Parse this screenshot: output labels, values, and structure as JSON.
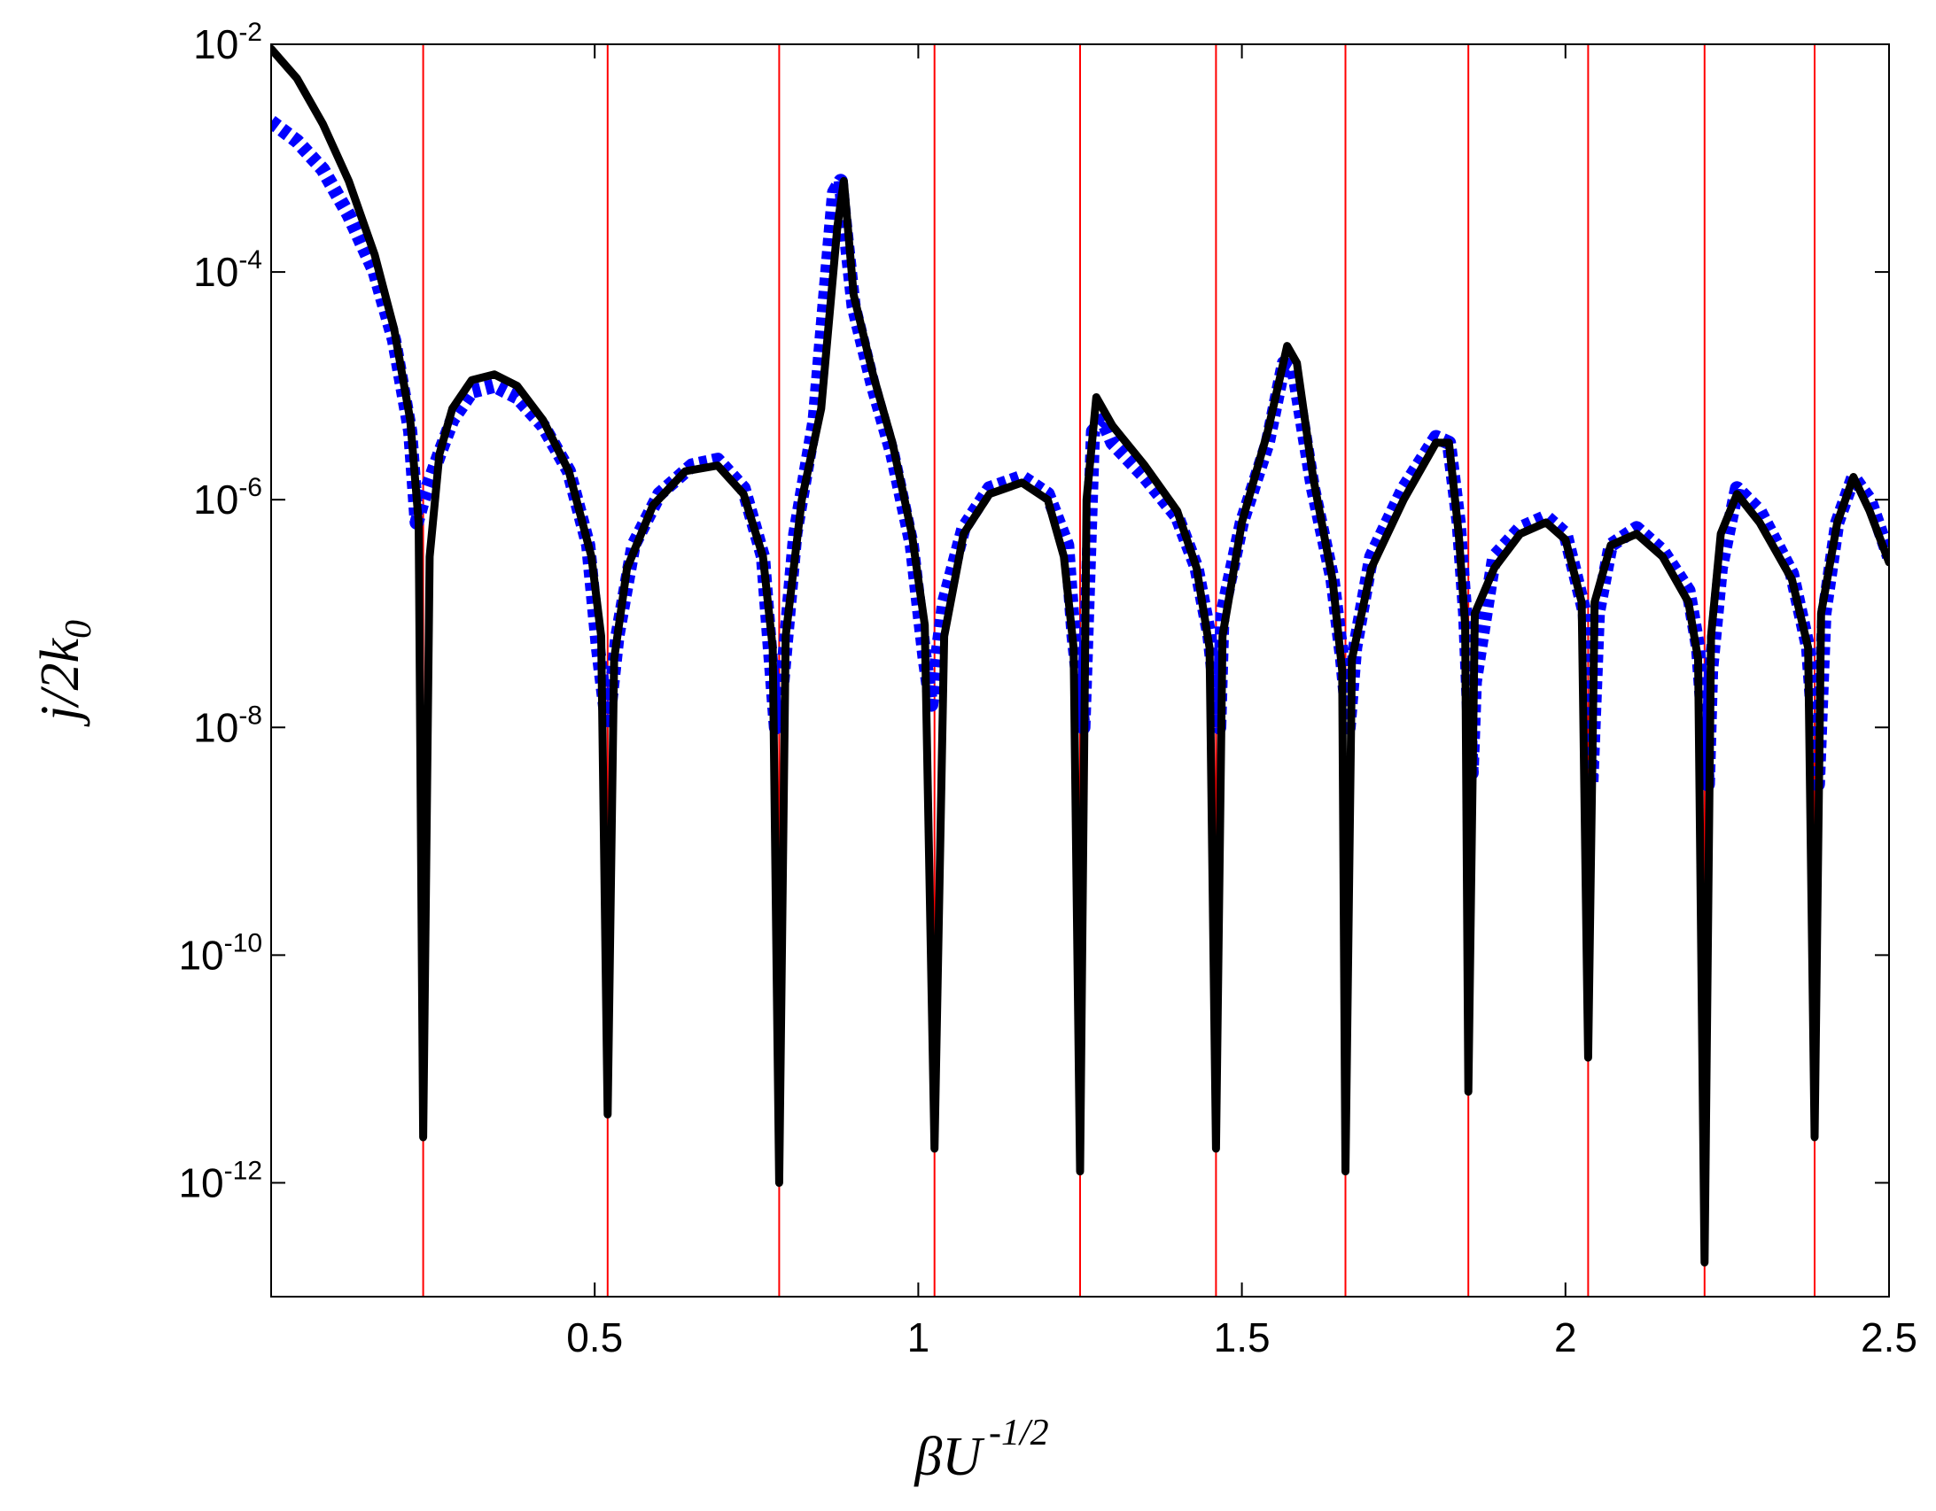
{
  "chart_data": {
    "type": "line",
    "title": "",
    "xlabel": {
      "base": "βU",
      "sup": "-1/2"
    },
    "ylabel": {
      "base": "j/2k",
      "sub": "0"
    },
    "xlim": [
      0,
      2.5
    ],
    "ylim_log10": [
      -13,
      -2
    ],
    "yscale": "log",
    "grid": false,
    "x_ticks": [
      {
        "value": 0.5,
        "label": "0.5"
      },
      {
        "value": 1,
        "label": "1"
      },
      {
        "value": 1.5,
        "label": "1.5"
      },
      {
        "value": 2,
        "label": "2"
      },
      {
        "value": 2.5,
        "label": "2.5"
      }
    ],
    "y_ticks": [
      {
        "exp": -2,
        "base": "10",
        "sup": "-2"
      },
      {
        "exp": -4,
        "base": "10",
        "sup": "-4"
      },
      {
        "exp": -6,
        "base": "10",
        "sup": "-6"
      },
      {
        "exp": -8,
        "base": "10",
        "sup": "-8"
      },
      {
        "exp": -10,
        "base": "10",
        "sup": "-10"
      },
      {
        "exp": -12,
        "base": "10",
        "sup": "-12"
      }
    ],
    "vertical_lines": {
      "color": "#ff0000",
      "x": [
        0.235,
        0.52,
        0.785,
        1.025,
        1.25,
        1.46,
        1.66,
        1.85,
        2.035,
        2.215,
        2.385
      ]
    },
    "series": [
      {
        "style": "solid",
        "color": "#000000",
        "points": [
          [
            0.0,
            -2.04
          ],
          [
            0.04,
            -2.3
          ],
          [
            0.08,
            -2.7
          ],
          [
            0.12,
            -3.2
          ],
          [
            0.16,
            -3.85
          ],
          [
            0.19,
            -4.5
          ],
          [
            0.215,
            -5.3
          ],
          [
            0.228,
            -6.2
          ],
          [
            0.235,
            -11.6
          ],
          [
            0.245,
            -6.5
          ],
          [
            0.26,
            -5.6
          ],
          [
            0.28,
            -5.2
          ],
          [
            0.31,
            -4.95
          ],
          [
            0.345,
            -4.9
          ],
          [
            0.38,
            -5.0
          ],
          [
            0.42,
            -5.3
          ],
          [
            0.46,
            -5.75
          ],
          [
            0.495,
            -6.5
          ],
          [
            0.51,
            -7.2
          ],
          [
            0.52,
            -11.4
          ],
          [
            0.53,
            -7.4
          ],
          [
            0.55,
            -6.6
          ],
          [
            0.59,
            -6.05
          ],
          [
            0.64,
            -5.75
          ],
          [
            0.69,
            -5.7
          ],
          [
            0.73,
            -5.95
          ],
          [
            0.76,
            -6.5
          ],
          [
            0.775,
            -7.3
          ],
          [
            0.785,
            -12.0
          ],
          [
            0.795,
            -7.2
          ],
          [
            0.82,
            -6.0
          ],
          [
            0.85,
            -5.2
          ],
          [
            0.875,
            -3.6
          ],
          [
            0.885,
            -3.2
          ],
          [
            0.9,
            -4.2
          ],
          [
            0.93,
            -4.9
          ],
          [
            0.96,
            -5.5
          ],
          [
            0.99,
            -6.3
          ],
          [
            1.01,
            -7.1
          ],
          [
            1.025,
            -11.7
          ],
          [
            1.04,
            -7.2
          ],
          [
            1.07,
            -6.3
          ],
          [
            1.11,
            -5.95
          ],
          [
            1.16,
            -5.85
          ],
          [
            1.2,
            -6.0
          ],
          [
            1.225,
            -6.5
          ],
          [
            1.24,
            -7.3
          ],
          [
            1.25,
            -11.9
          ],
          [
            1.26,
            -6.0
          ],
          [
            1.275,
            -5.1
          ],
          [
            1.3,
            -5.35
          ],
          [
            1.35,
            -5.7
          ],
          [
            1.4,
            -6.1
          ],
          [
            1.43,
            -6.6
          ],
          [
            1.45,
            -7.3
          ],
          [
            1.46,
            -11.7
          ],
          [
            1.47,
            -7.2
          ],
          [
            1.5,
            -6.2
          ],
          [
            1.54,
            -5.4
          ],
          [
            1.57,
            -4.65
          ],
          [
            1.585,
            -4.8
          ],
          [
            1.61,
            -5.8
          ],
          [
            1.64,
            -6.7
          ],
          [
            1.655,
            -7.5
          ],
          [
            1.66,
            -11.9
          ],
          [
            1.67,
            -7.4
          ],
          [
            1.7,
            -6.6
          ],
          [
            1.75,
            -6.0
          ],
          [
            1.8,
            -5.5
          ],
          [
            1.82,
            -5.5
          ],
          [
            1.835,
            -6.3
          ],
          [
            1.845,
            -7.1
          ],
          [
            1.85,
            -11.2
          ],
          [
            1.86,
            -7.0
          ],
          [
            1.89,
            -6.6
          ],
          [
            1.93,
            -6.3
          ],
          [
            1.97,
            -6.2
          ],
          [
            2.0,
            -6.35
          ],
          [
            2.025,
            -6.9
          ],
          [
            2.035,
            -10.9
          ],
          [
            2.045,
            -6.9
          ],
          [
            2.07,
            -6.4
          ],
          [
            2.11,
            -6.3
          ],
          [
            2.15,
            -6.5
          ],
          [
            2.19,
            -6.9
          ],
          [
            2.205,
            -7.4
          ],
          [
            2.215,
            -12.7
          ],
          [
            2.225,
            -7.2
          ],
          [
            2.24,
            -6.3
          ],
          [
            2.265,
            -5.95
          ],
          [
            2.3,
            -6.2
          ],
          [
            2.35,
            -6.7
          ],
          [
            2.375,
            -7.3
          ],
          [
            2.385,
            -11.6
          ],
          [
            2.395,
            -7.0
          ],
          [
            2.42,
            -6.2
          ],
          [
            2.445,
            -5.8
          ],
          [
            2.47,
            -6.1
          ],
          [
            2.5,
            -6.55
          ]
        ]
      },
      {
        "style": "dotted",
        "color": "#0000ff",
        "points": [
          [
            0.0,
            -2.68
          ],
          [
            0.04,
            -2.85
          ],
          [
            0.08,
            -3.1
          ],
          [
            0.12,
            -3.5
          ],
          [
            0.16,
            -4.0
          ],
          [
            0.19,
            -4.6
          ],
          [
            0.215,
            -5.4
          ],
          [
            0.225,
            -6.2
          ],
          [
            0.235,
            -6.0
          ],
          [
            0.26,
            -5.6
          ],
          [
            0.28,
            -5.3
          ],
          [
            0.31,
            -5.05
          ],
          [
            0.345,
            -5.0
          ],
          [
            0.38,
            -5.1
          ],
          [
            0.42,
            -5.35
          ],
          [
            0.46,
            -5.75
          ],
          [
            0.49,
            -6.4
          ],
          [
            0.505,
            -7.3
          ],
          [
            0.52,
            -8.0
          ],
          [
            0.535,
            -7.2
          ],
          [
            0.56,
            -6.4
          ],
          [
            0.6,
            -5.95
          ],
          [
            0.65,
            -5.7
          ],
          [
            0.69,
            -5.65
          ],
          [
            0.73,
            -5.9
          ],
          [
            0.76,
            -6.5
          ],
          [
            0.78,
            -8.0
          ],
          [
            0.79,
            -7.6
          ],
          [
            0.81,
            -6.3
          ],
          [
            0.84,
            -5.3
          ],
          [
            0.87,
            -3.3
          ],
          [
            0.88,
            -3.2
          ],
          [
            0.885,
            -3.5
          ],
          [
            0.9,
            -4.3
          ],
          [
            0.93,
            -5.0
          ],
          [
            0.96,
            -5.6
          ],
          [
            0.99,
            -6.4
          ],
          [
            1.01,
            -7.4
          ],
          [
            1.02,
            -7.8
          ],
          [
            1.04,
            -6.9
          ],
          [
            1.07,
            -6.25
          ],
          [
            1.11,
            -5.9
          ],
          [
            1.16,
            -5.8
          ],
          [
            1.2,
            -5.95
          ],
          [
            1.23,
            -6.4
          ],
          [
            1.24,
            -7.2
          ],
          [
            1.255,
            -8.0
          ],
          [
            1.27,
            -5.4
          ],
          [
            1.285,
            -5.3
          ],
          [
            1.3,
            -5.5
          ],
          [
            1.35,
            -5.8
          ],
          [
            1.4,
            -6.15
          ],
          [
            1.43,
            -6.6
          ],
          [
            1.45,
            -7.2
          ],
          [
            1.465,
            -8.0
          ],
          [
            1.47,
            -7.0
          ],
          [
            1.5,
            -6.2
          ],
          [
            1.54,
            -5.5
          ],
          [
            1.565,
            -4.8
          ],
          [
            1.58,
            -4.85
          ],
          [
            1.61,
            -5.9
          ],
          [
            1.64,
            -6.7
          ],
          [
            1.655,
            -7.4
          ],
          [
            1.665,
            -8.0
          ],
          [
            1.675,
            -7.3
          ],
          [
            1.7,
            -6.5
          ],
          [
            1.75,
            -5.9
          ],
          [
            1.8,
            -5.45
          ],
          [
            1.82,
            -5.5
          ],
          [
            1.835,
            -6.2
          ],
          [
            1.845,
            -7.0
          ],
          [
            1.855,
            -8.4
          ],
          [
            1.86,
            -7.6
          ],
          [
            1.89,
            -6.5
          ],
          [
            1.93,
            -6.25
          ],
          [
            1.97,
            -6.15
          ],
          [
            2.0,
            -6.3
          ],
          [
            2.03,
            -7.0
          ],
          [
            2.04,
            -8.5
          ],
          [
            2.05,
            -7.0
          ],
          [
            2.07,
            -6.4
          ],
          [
            2.11,
            -6.25
          ],
          [
            2.15,
            -6.45
          ],
          [
            2.19,
            -6.8
          ],
          [
            2.205,
            -7.3
          ],
          [
            2.22,
            -8.5
          ],
          [
            2.225,
            -7.5
          ],
          [
            2.24,
            -6.6
          ],
          [
            2.265,
            -5.9
          ],
          [
            2.3,
            -6.1
          ],
          [
            2.35,
            -6.65
          ],
          [
            2.375,
            -7.3
          ],
          [
            2.39,
            -8.5
          ],
          [
            2.4,
            -7.0
          ],
          [
            2.42,
            -6.2
          ],
          [
            2.445,
            -5.8
          ],
          [
            2.47,
            -6.0
          ],
          [
            2.5,
            -6.5
          ]
        ]
      }
    ]
  }
}
